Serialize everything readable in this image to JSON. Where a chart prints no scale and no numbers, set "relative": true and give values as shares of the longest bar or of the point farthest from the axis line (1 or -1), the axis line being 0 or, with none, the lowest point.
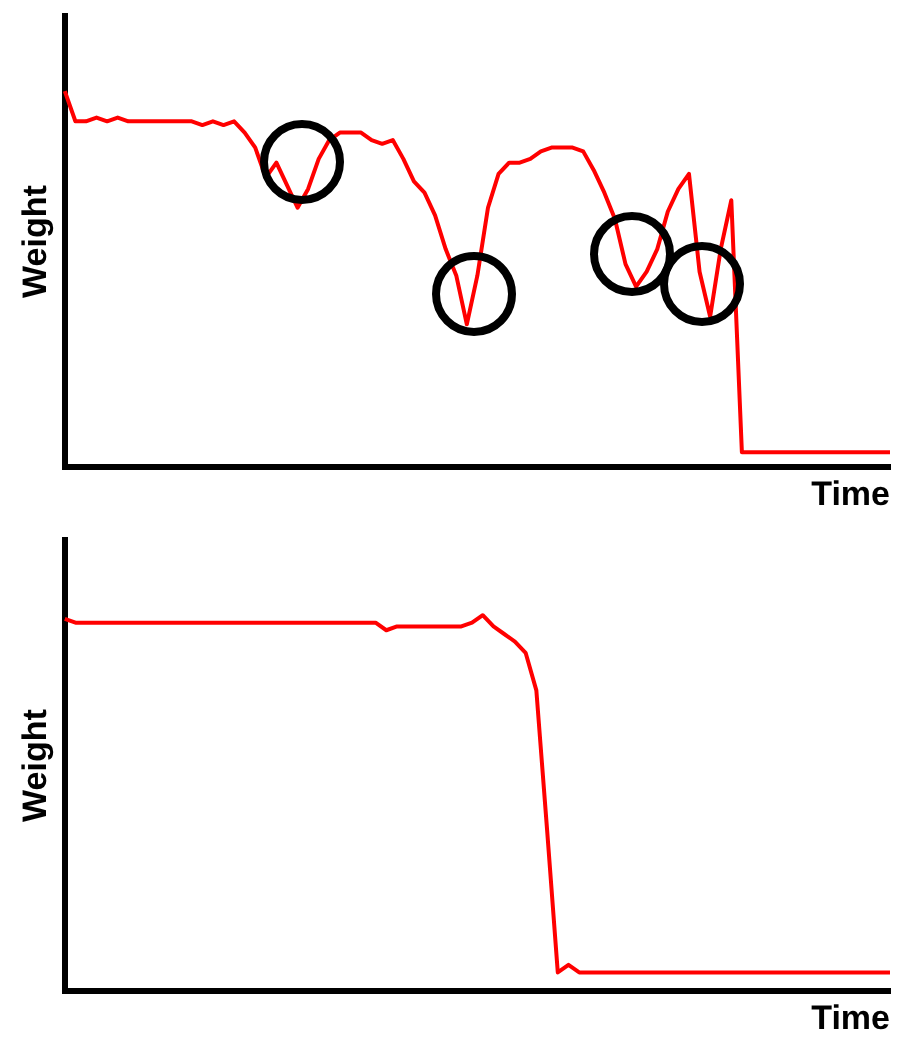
{
  "chart_data": [
    {
      "type": "line",
      "xlabel": "Time",
      "ylabel": "Weight",
      "relative": true,
      "tick_labels": false,
      "categories": [
        null,
        null,
        null,
        null,
        null,
        null,
        null,
        null,
        null,
        null,
        null,
        null,
        null,
        null,
        null,
        null,
        null,
        null,
        null,
        null,
        null,
        null,
        null,
        null,
        null,
        null,
        null,
        null,
        null,
        null,
        null,
        null,
        null,
        null,
        null,
        null,
        null,
        null,
        null,
        null,
        null,
        null,
        null,
        null,
        null,
        null,
        null,
        null,
        null,
        null,
        null,
        null,
        null,
        null,
        null,
        null,
        null,
        null,
        null,
        null,
        null,
        null,
        null,
        null,
        null,
        null,
        null,
        null,
        null,
        null,
        null,
        null,
        null,
        null,
        null,
        null,
        null,
        null,
        null
      ],
      "series": [
        {
          "color": "#ff0000",
          "values": [
            1.0,
            0.92,
            0.92,
            0.93,
            0.92,
            0.93,
            0.92,
            0.92,
            0.92,
            0.92,
            0.92,
            0.92,
            0.92,
            0.91,
            0.92,
            0.91,
            0.92,
            0.89,
            0.85,
            0.77,
            0.81,
            0.75,
            0.69,
            0.74,
            0.82,
            0.87,
            0.89,
            0.89,
            0.89,
            0.87,
            0.86,
            0.87,
            0.82,
            0.76,
            0.73,
            0.67,
            0.58,
            0.51,
            0.38,
            0.51,
            0.69,
            0.78,
            0.81,
            0.81,
            0.82,
            0.84,
            0.85,
            0.85,
            0.85,
            0.84,
            0.79,
            0.73,
            0.66,
            0.54,
            0.48,
            0.52,
            0.58,
            0.68,
            0.74,
            0.78,
            0.52,
            0.4,
            0.58,
            0.71,
            0.04,
            0.04,
            0.04,
            0.04,
            0.04,
            0.04,
            0.04,
            0.04,
            0.04,
            0.04,
            0.04,
            0.04,
            0.04,
            0.04,
            0.04
          ]
        }
      ]
    },
    {
      "type": "line",
      "xlabel": "Time",
      "ylabel": "Weight",
      "relative": true,
      "tick_labels": false,
      "categories": [
        null,
        null,
        null,
        null,
        null,
        null,
        null,
        null,
        null,
        null,
        null,
        null,
        null,
        null,
        null,
        null,
        null,
        null,
        null,
        null,
        null,
        null,
        null,
        null,
        null,
        null,
        null,
        null,
        null,
        null,
        null,
        null,
        null,
        null,
        null,
        null,
        null,
        null,
        null,
        null,
        null,
        null,
        null,
        null,
        null,
        null,
        null,
        null,
        null,
        null,
        null,
        null,
        null,
        null,
        null,
        null,
        null,
        null,
        null,
        null,
        null,
        null,
        null,
        null,
        null,
        null,
        null,
        null,
        null,
        null,
        null,
        null,
        null,
        null,
        null,
        null,
        null,
        null
      ],
      "series": [
        {
          "color": "#ff0000",
          "values": [
            0.99,
            0.98,
            0.98,
            0.98,
            0.98,
            0.98,
            0.98,
            0.98,
            0.98,
            0.98,
            0.98,
            0.98,
            0.98,
            0.98,
            0.98,
            0.98,
            0.98,
            0.98,
            0.98,
            0.98,
            0.98,
            0.98,
            0.98,
            0.98,
            0.98,
            0.98,
            0.98,
            0.98,
            0.98,
            0.98,
            0.96,
            0.97,
            0.97,
            0.97,
            0.97,
            0.97,
            0.97,
            0.97,
            0.98,
            1.0,
            0.97,
            0.95,
            0.93,
            0.9,
            0.8,
            0.43,
            0.05,
            0.07,
            0.05,
            0.05,
            0.05,
            0.05,
            0.05,
            0.05,
            0.05,
            0.05,
            0.05,
            0.05,
            0.05,
            0.05,
            0.05,
            0.05,
            0.05,
            0.05,
            0.05,
            0.05,
            0.05,
            0.05,
            0.05,
            0.05,
            0.05,
            0.05,
            0.05,
            0.05,
            0.05,
            0.05,
            0.05,
            0.05
          ]
        }
      ]
    }
  ]
}
